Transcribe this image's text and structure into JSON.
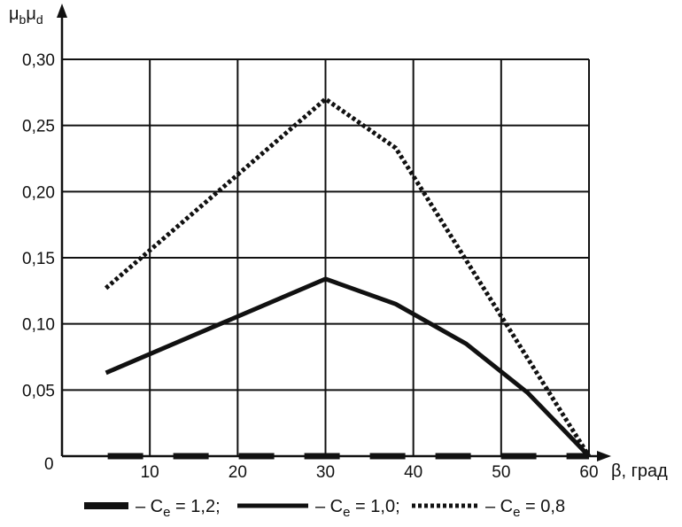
{
  "chart_data": {
    "type": "line",
    "ylabel": "μ",
    "ylabel_sub1": "b",
    "ylabel_mid": "μ",
    "ylabel_sub2": "d",
    "xlabel": "β, град",
    "xlim": [
      0,
      60
    ],
    "ylim": [
      0,
      0.3
    ],
    "x_ticks": [
      10,
      20,
      30,
      40,
      50,
      60
    ],
    "x_tick_labels": [
      "10",
      "20",
      "30",
      "40",
      "50",
      "60"
    ],
    "y_ticks": [
      0.05,
      0.1,
      0.15,
      0.2,
      0.25,
      0.3
    ],
    "y_tick_labels": [
      "0,05",
      "0,10",
      "0,15",
      "0,20",
      "0,25",
      "0,30"
    ],
    "origin_label": "0",
    "grid": true,
    "series": [
      {
        "style": "thick-dash",
        "color": "#111111",
        "x": [
          5,
          60
        ],
        "y": [
          0,
          0
        ]
      },
      {
        "style": "solid",
        "color": "#111111",
        "x": [
          5,
          30,
          38,
          46,
          53,
          60
        ],
        "y": [
          0.063,
          0.134,
          0.115,
          0.085,
          0.048,
          0
        ]
      },
      {
        "style": "dotted",
        "color": "#111111",
        "x": [
          5,
          30,
          38,
          60
        ],
        "y": [
          0.127,
          0.27,
          0.233,
          0
        ]
      }
    ],
    "legend": [
      {
        "style": "thick-dash",
        "prefix": "– C",
        "sub": "e",
        "suffix": " = 1,2;"
      },
      {
        "style": "solid",
        "prefix": "– C",
        "sub": "e",
        "suffix": " = 1,0;"
      },
      {
        "style": "dotted",
        "prefix": "– C",
        "sub": "e",
        "suffix": " = 0,8"
      }
    ],
    "legend_placement": "bottom"
  }
}
